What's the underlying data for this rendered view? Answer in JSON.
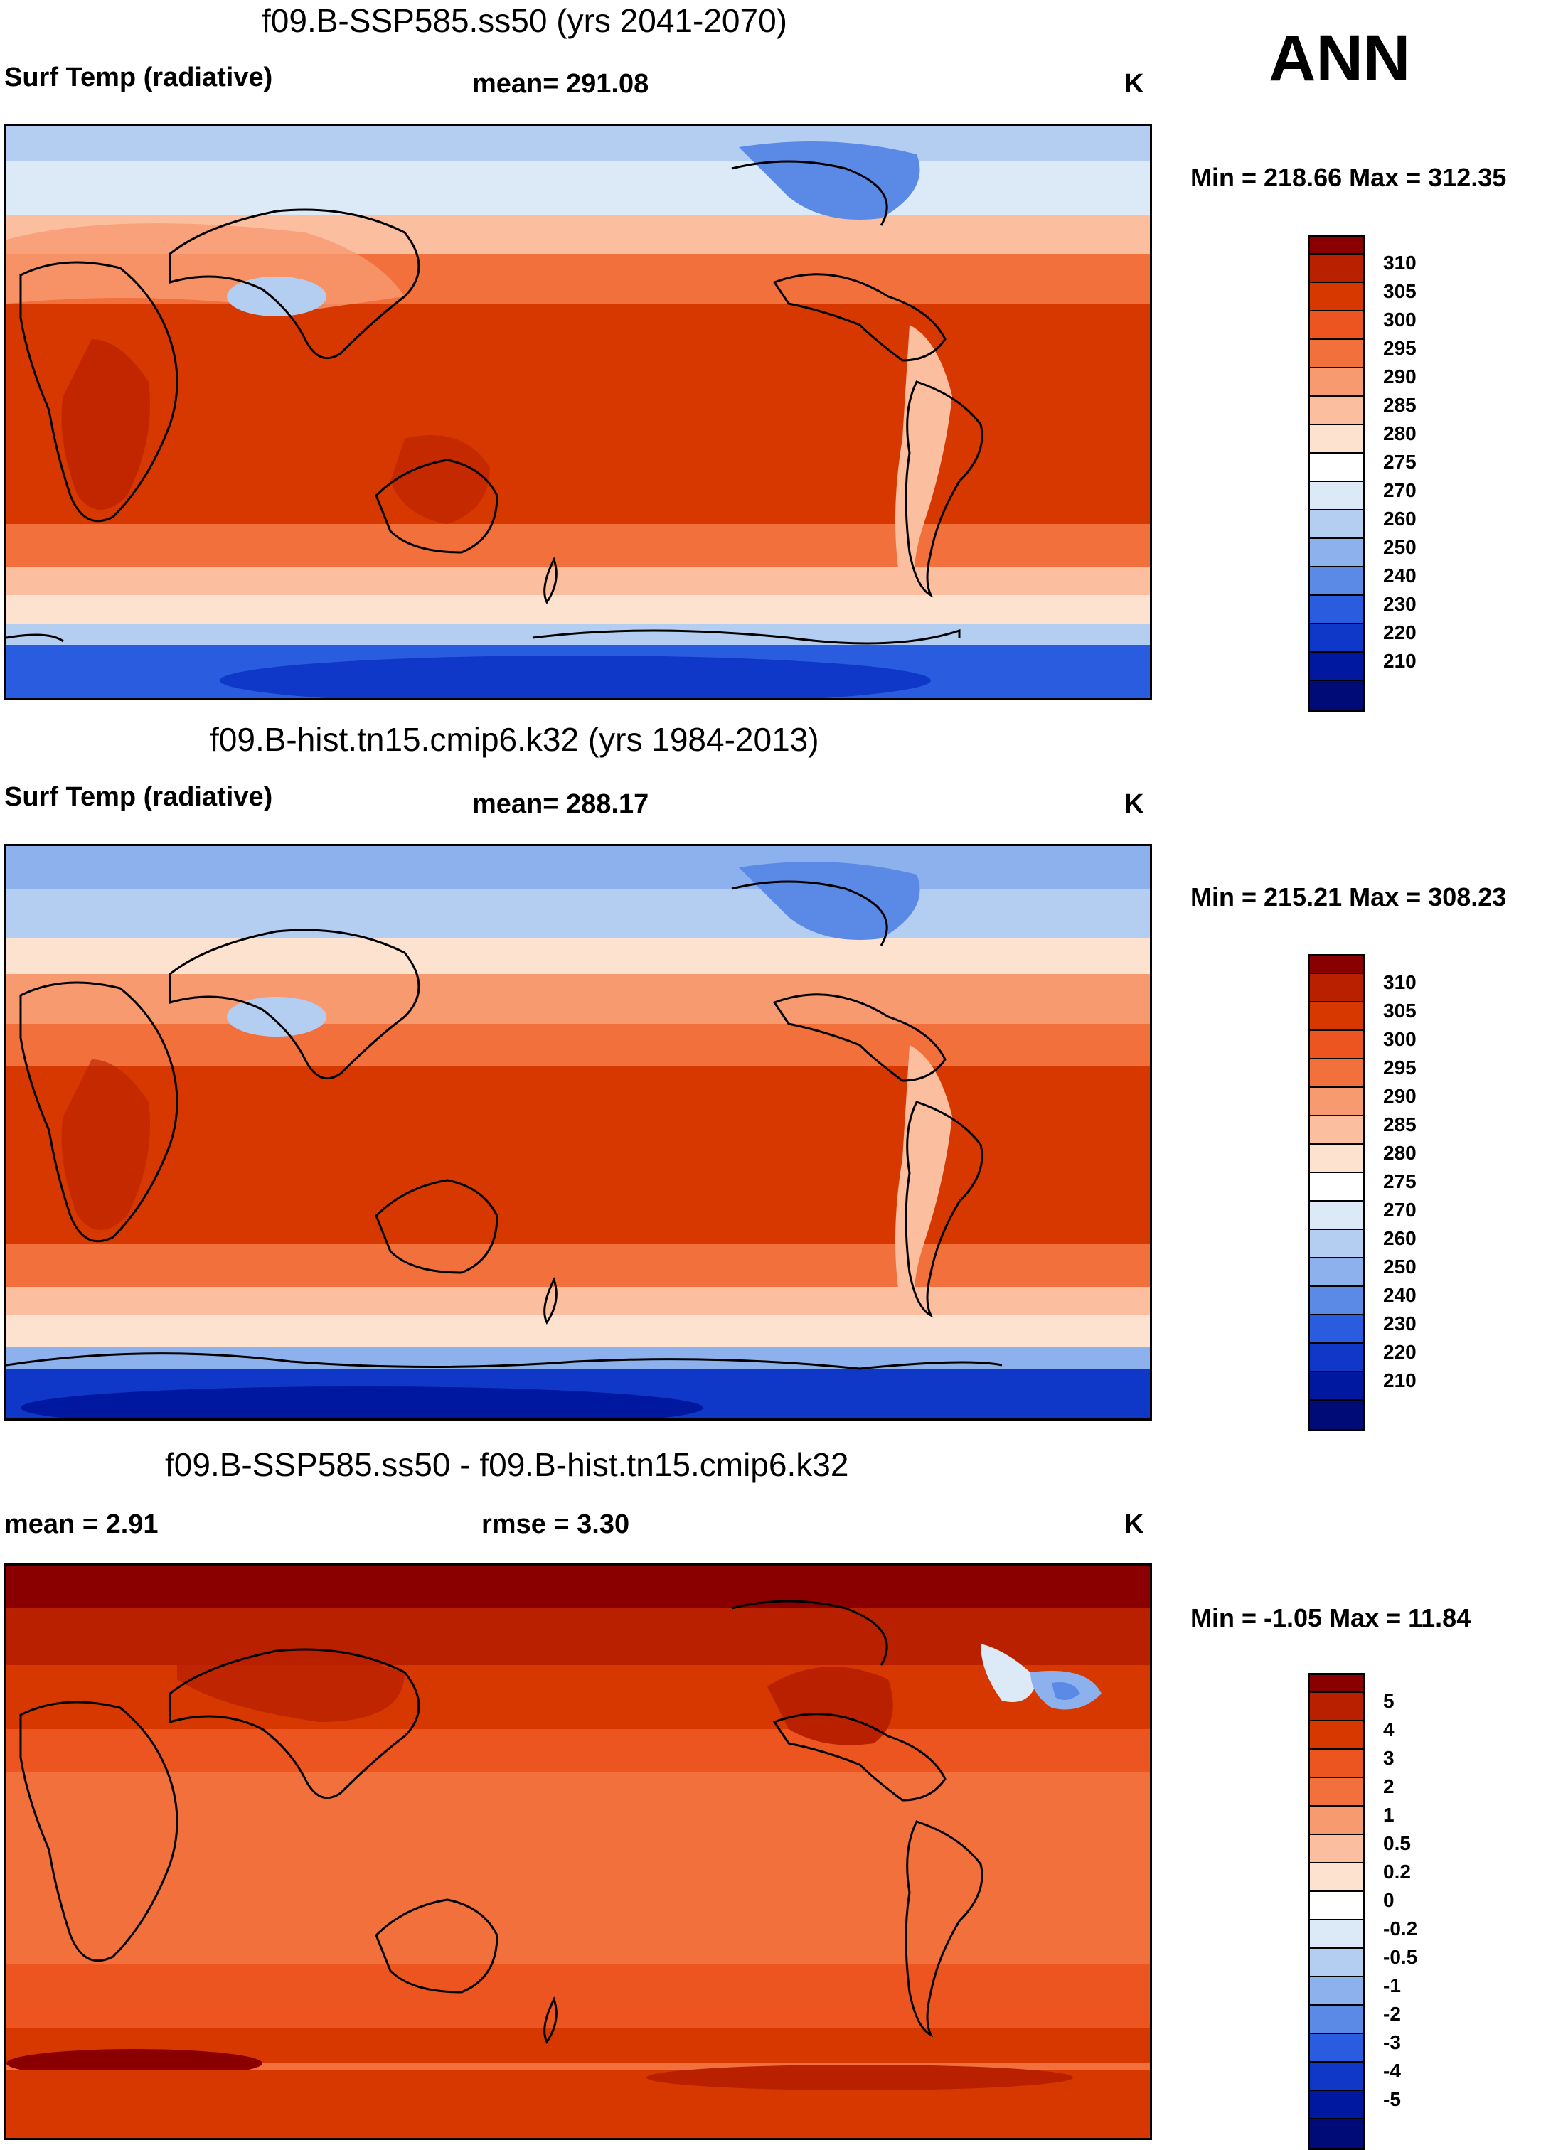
{
  "season": "ANN",
  "panels": [
    {
      "title": "f09.B-SSP585.ss50 (yrs 2041-2070)",
      "left_label": "Surf Temp (radiative)",
      "center_label": "mean= 291.08",
      "units": "K",
      "minmax": "Min = 218.66 Max = 312.35",
      "levels": [
        "310",
        "305",
        "300",
        "295",
        "290",
        "285",
        "280",
        "275",
        "270",
        "260",
        "250",
        "240",
        "230",
        "220",
        "210"
      ],
      "colors": [
        "#8a0000",
        "#b82000",
        "#d63800",
        "#ec5520",
        "#f2703c",
        "#f89a70",
        "#fbbfa0",
        "#fde2d0",
        "#ffffff",
        "#dceaf8",
        "#b4cef2",
        "#8db1ec",
        "#5a8ae6",
        "#2a5ce0",
        "#0f38c8",
        "#0018a0",
        "#000b78"
      ]
    },
    {
      "title": "f09.B-hist.tn15.cmip6.k32 (yrs 1984-2013)",
      "left_label": "Surf Temp (radiative)",
      "center_label": "mean= 288.17",
      "units": "K",
      "minmax": "Min = 215.21 Max = 308.23",
      "levels": [
        "310",
        "305",
        "300",
        "295",
        "290",
        "285",
        "280",
        "275",
        "270",
        "260",
        "250",
        "240",
        "230",
        "220",
        "210"
      ],
      "colors": [
        "#8a0000",
        "#b82000",
        "#d63800",
        "#ec5520",
        "#f2703c",
        "#f89a70",
        "#fbbfa0",
        "#fde2d0",
        "#ffffff",
        "#dceaf8",
        "#b4cef2",
        "#8db1ec",
        "#5a8ae6",
        "#2a5ce0",
        "#0f38c8",
        "#0018a0",
        "#000b78"
      ]
    },
    {
      "title": "f09.B-SSP585.ss50 - f09.B-hist.tn15.cmip6.k32",
      "left_label": "mean =    2.91",
      "center_label": "rmse =    3.30",
      "units": "K",
      "minmax": "Min =  -1.05 Max =  11.84",
      "levels": [
        "5",
        "4",
        "3",
        "2",
        "1",
        "0.5",
        "0.2",
        "0",
        "-0.2",
        "-0.5",
        "-1",
        "-2",
        "-3",
        "-4",
        "-5"
      ],
      "colors": [
        "#8a0000",
        "#b82000",
        "#d63800",
        "#ec5520",
        "#f2703c",
        "#f89a70",
        "#fbbfa0",
        "#fde2d0",
        "#ffffff",
        "#dceaf8",
        "#b4cef2",
        "#8db1ec",
        "#5a8ae6",
        "#2a5ce0",
        "#0f38c8",
        "#0018a0",
        "#000b78"
      ]
    }
  ]
}
